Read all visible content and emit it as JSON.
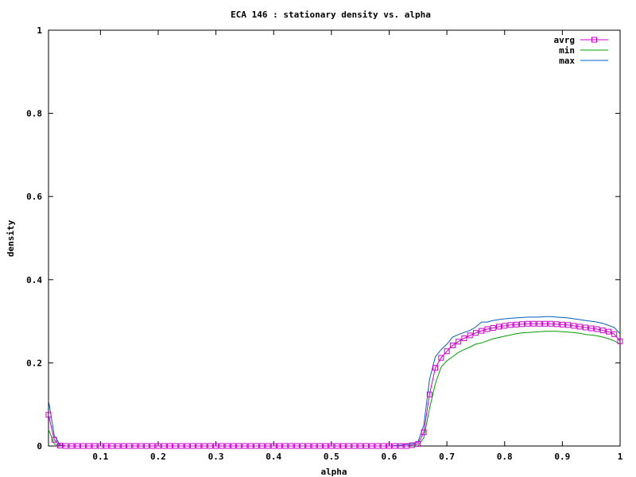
{
  "chart_data": {
    "type": "line",
    "title": "ECA 146 : stationary density vs. alpha",
    "xlabel": "alpha",
    "ylabel": "density",
    "xlim": [
      0.01,
      1.0
    ],
    "ylim": [
      0,
      1
    ],
    "x_ticks": [
      "0.1",
      "0.2",
      "0.3",
      "0.4",
      "0.5",
      "0.6",
      "0.7",
      "0.8",
      "0.9",
      "1"
    ],
    "y_ticks": [
      "0",
      "0.2",
      "0.4",
      "0.6",
      "0.8",
      "1"
    ],
    "grid": false,
    "legend_position": "top-right",
    "series": [
      {
        "name": "avrg",
        "color": "#cc00cc",
        "marker": "square",
        "x": [
          0.01,
          0.02,
          0.03,
          0.04,
          0.05,
          0.06,
          0.07,
          0.08,
          0.09,
          0.1,
          0.11,
          0.12,
          0.13,
          0.14,
          0.15,
          0.16,
          0.17,
          0.18,
          0.19,
          0.2,
          0.21,
          0.22,
          0.23,
          0.24,
          0.25,
          0.26,
          0.27,
          0.28,
          0.29,
          0.3,
          0.31,
          0.32,
          0.33,
          0.34,
          0.35,
          0.36,
          0.37,
          0.38,
          0.39,
          0.4,
          0.41,
          0.42,
          0.43,
          0.44,
          0.45,
          0.46,
          0.47,
          0.48,
          0.49,
          0.5,
          0.51,
          0.52,
          0.53,
          0.54,
          0.55,
          0.56,
          0.57,
          0.58,
          0.59,
          0.6,
          0.61,
          0.62,
          0.63,
          0.64,
          0.65,
          0.66,
          0.67,
          0.68,
          0.69,
          0.7,
          0.71,
          0.72,
          0.73,
          0.74,
          0.75,
          0.76,
          0.77,
          0.78,
          0.79,
          0.8,
          0.81,
          0.82,
          0.83,
          0.84,
          0.85,
          0.86,
          0.87,
          0.88,
          0.89,
          0.9,
          0.91,
          0.92,
          0.93,
          0.94,
          0.95,
          0.96,
          0.97,
          0.98,
          0.99,
          1.0
        ],
        "values": [
          0.075,
          0.015,
          0.001,
          0.0,
          0.0,
          0.0,
          0.0,
          0.0,
          0.0,
          0.0,
          0.0,
          0.0,
          0.0,
          0.0,
          0.0,
          0.0,
          0.0,
          0.0,
          0.0,
          0.0,
          0.0,
          0.0,
          0.0,
          0.0,
          0.0,
          0.0,
          0.0,
          0.0,
          0.0,
          0.0,
          0.0,
          0.0,
          0.0,
          0.0,
          0.0,
          0.0,
          0.0,
          0.0,
          0.0,
          0.0,
          0.0,
          0.0,
          0.0,
          0.0,
          0.0,
          0.0,
          0.0,
          0.0,
          0.0,
          0.0,
          0.0,
          0.0,
          0.0,
          0.0,
          0.0,
          0.0,
          0.0,
          0.0,
          0.0,
          0.0,
          0.0,
          0.0,
          0.0,
          0.002,
          0.005,
          0.033,
          0.124,
          0.188,
          0.212,
          0.228,
          0.242,
          0.251,
          0.259,
          0.266,
          0.272,
          0.277,
          0.281,
          0.284,
          0.287,
          0.289,
          0.291,
          0.292,
          0.293,
          0.294,
          0.294,
          0.294,
          0.294,
          0.294,
          0.293,
          0.292,
          0.291,
          0.289,
          0.287,
          0.285,
          0.283,
          0.281,
          0.278,
          0.275,
          0.269,
          0.252
        ]
      },
      {
        "name": "min",
        "color": "#00a000",
        "marker": "none",
        "x": [
          0.01,
          0.02,
          0.03,
          0.04,
          0.05,
          0.1,
          0.2,
          0.3,
          0.4,
          0.5,
          0.6,
          0.62,
          0.64,
          0.65,
          0.66,
          0.67,
          0.68,
          0.69,
          0.7,
          0.71,
          0.72,
          0.73,
          0.74,
          0.75,
          0.76,
          0.77,
          0.78,
          0.79,
          0.8,
          0.81,
          0.82,
          0.83,
          0.84,
          0.85,
          0.86,
          0.87,
          0.88,
          0.89,
          0.9,
          0.91,
          0.92,
          0.93,
          0.94,
          0.95,
          0.96,
          0.97,
          0.98,
          0.99,
          1.0
        ],
        "values": [
          0.04,
          0.005,
          0.0,
          0.0,
          0.0,
          0.0,
          0.0,
          0.0,
          0.0,
          0.0,
          0.0,
          0.0,
          0.0,
          0.0,
          0.02,
          0.09,
          0.15,
          0.19,
          0.205,
          0.215,
          0.225,
          0.232,
          0.238,
          0.245,
          0.248,
          0.253,
          0.258,
          0.261,
          0.264,
          0.267,
          0.27,
          0.272,
          0.273,
          0.274,
          0.275,
          0.276,
          0.276,
          0.276,
          0.275,
          0.274,
          0.273,
          0.271,
          0.268,
          0.267,
          0.265,
          0.262,
          0.258,
          0.253,
          0.245
        ]
      },
      {
        "name": "max",
        "color": "#0060c0",
        "marker": "none",
        "x": [
          0.01,
          0.02,
          0.03,
          0.04,
          0.05,
          0.1,
          0.2,
          0.3,
          0.4,
          0.5,
          0.6,
          0.62,
          0.64,
          0.65,
          0.66,
          0.67,
          0.68,
          0.69,
          0.7,
          0.71,
          0.72,
          0.73,
          0.74,
          0.75,
          0.76,
          0.77,
          0.78,
          0.79,
          0.8,
          0.81,
          0.82,
          0.83,
          0.84,
          0.85,
          0.86,
          0.87,
          0.88,
          0.89,
          0.9,
          0.91,
          0.92,
          0.93,
          0.94,
          0.95,
          0.96,
          0.97,
          0.98,
          0.99,
          1.0
        ],
        "values": [
          0.11,
          0.025,
          0.003,
          0.0,
          0.0,
          0.0,
          0.0,
          0.0,
          0.0,
          0.0,
          0.0,
          0.002,
          0.005,
          0.01,
          0.05,
          0.16,
          0.215,
          0.232,
          0.245,
          0.262,
          0.268,
          0.273,
          0.278,
          0.286,
          0.298,
          0.298,
          0.302,
          0.304,
          0.306,
          0.307,
          0.308,
          0.309,
          0.31,
          0.31,
          0.31,
          0.311,
          0.311,
          0.31,
          0.309,
          0.308,
          0.306,
          0.304,
          0.302,
          0.3,
          0.298,
          0.295,
          0.29,
          0.285,
          0.27
        ]
      }
    ]
  }
}
